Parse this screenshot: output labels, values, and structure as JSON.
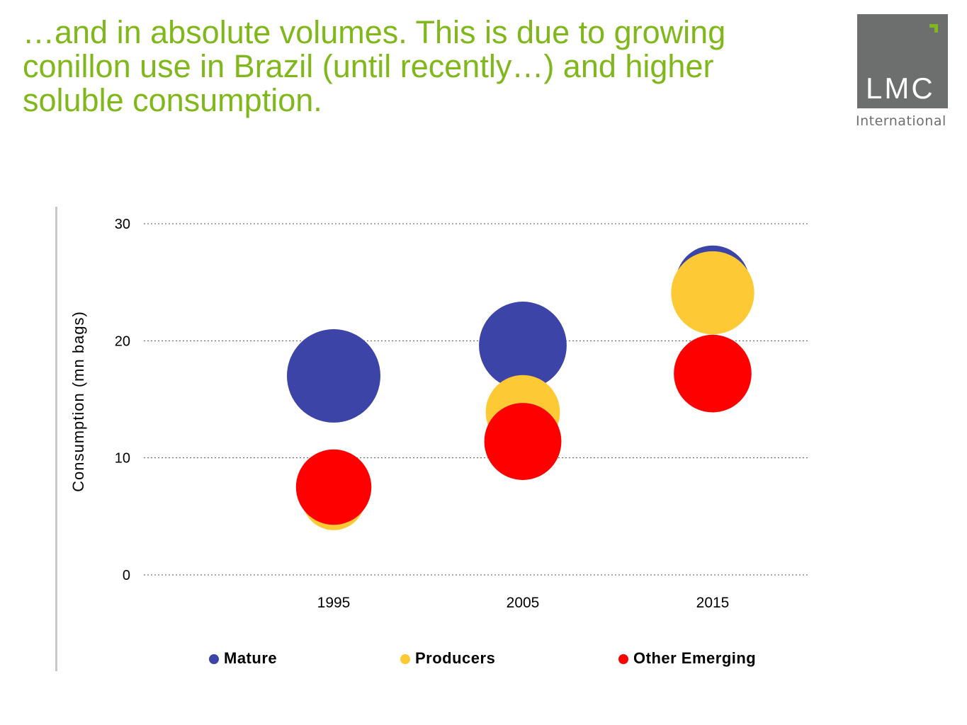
{
  "slide": {
    "headline": "…and in absolute volumes. This is due to growing conillon use in Brazil (until recently…) and higher soluble consumption."
  },
  "logo": {
    "mark": "LMC",
    "sub": "International"
  },
  "chart_data": {
    "type": "scatter",
    "variant": "bubble",
    "ylabel": "Consumption (mn bags)",
    "xlabel": "",
    "title": "",
    "categories": [
      "1995",
      "2005",
      "2015"
    ],
    "ylim": [
      0,
      30
    ],
    "yticks": [
      "0",
      "10",
      "20",
      "30"
    ],
    "grid": true,
    "legend_position": "bottom",
    "series": [
      {
        "name": "Mature",
        "color": "#3d44a8",
        "points": [
          {
            "x": "1995",
            "y": 17.0,
            "size": 1.0
          },
          {
            "x": "2005",
            "y": 19.6,
            "size": 0.88
          },
          {
            "x": "2015",
            "y": 25.0,
            "size": 0.62
          }
        ]
      },
      {
        "name": "Producers",
        "color": "#fdc935",
        "points": [
          {
            "x": "1995",
            "y": 6.5,
            "size": 0.45
          },
          {
            "x": "2005",
            "y": 13.9,
            "size": 0.63
          },
          {
            "x": "2015",
            "y": 24.1,
            "size": 0.79
          }
        ]
      },
      {
        "name": "Other Emerging",
        "color": "#ff0000",
        "points": [
          {
            "x": "1995",
            "y": 7.5,
            "size": 0.65
          },
          {
            "x": "2005",
            "y": 11.4,
            "size": 0.68
          },
          {
            "x": "2015",
            "y": 17.2,
            "size": 0.69
          }
        ]
      }
    ]
  }
}
